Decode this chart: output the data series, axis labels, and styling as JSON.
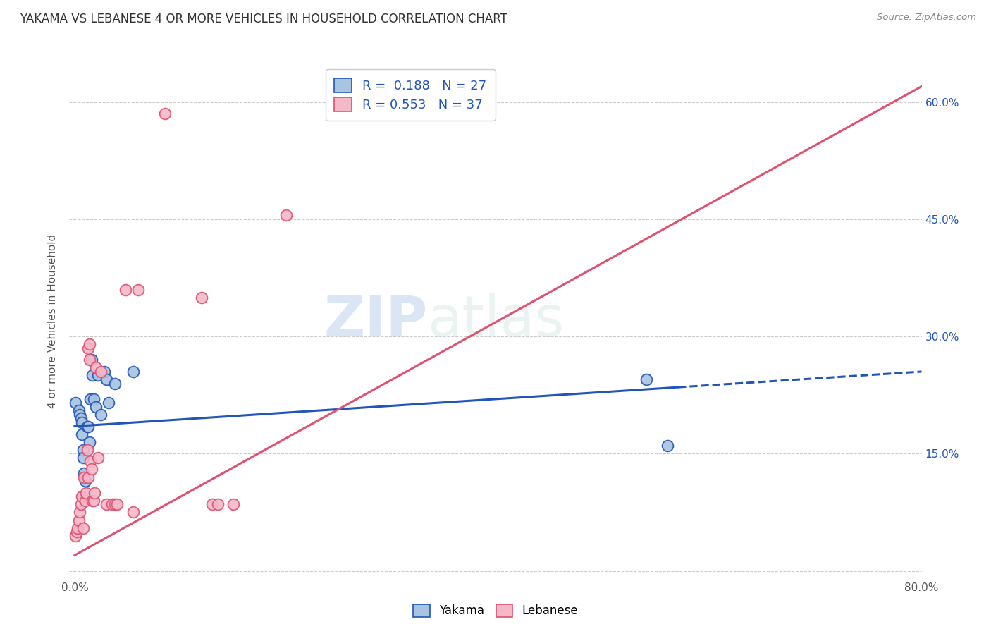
{
  "title": "YAKAMA VS LEBANESE 4 OR MORE VEHICLES IN HOUSEHOLD CORRELATION CHART",
  "source": "Source: ZipAtlas.com",
  "ylabel": "4 or more Vehicles in Household",
  "xlim": [
    -0.005,
    0.8
  ],
  "ylim": [
    -0.01,
    0.65
  ],
  "xtick_positions": [
    0.0,
    0.1,
    0.2,
    0.3,
    0.4,
    0.5,
    0.6,
    0.7,
    0.8
  ],
  "xticklabels": [
    "0.0%",
    "",
    "",
    "",
    "",
    "",
    "",
    "",
    "80.0%"
  ],
  "ytick_positions": [
    0.0,
    0.15,
    0.3,
    0.45,
    0.6
  ],
  "ytick_right": [
    0.15,
    0.3,
    0.45,
    0.6
  ],
  "yticklabels_right": [
    "15.0%",
    "30.0%",
    "45.0%",
    "60.0%"
  ],
  "watermark": "ZIPatlas",
  "legend_r_yakama": "0.188",
  "legend_n_yakama": "27",
  "legend_r_lebanese": "0.553",
  "legend_n_lebanese": "37",
  "yakama_color": "#a8c4e0",
  "lebanese_color": "#f4b8c8",
  "yakama_line_color": "#2255bb",
  "lebanese_line_color": "#e05070",
  "yakama_line": {
    "x0": 0.0,
    "y0": 0.185,
    "x1": 0.57,
    "y1": 0.235,
    "x_dash_end": 0.8,
    "y_dash_end": 0.255
  },
  "lebanese_line": {
    "x0": 0.0,
    "y0": 0.02,
    "x1": 0.8,
    "y1": 0.62
  },
  "yakama_scatter": [
    [
      0.001,
      0.215
    ],
    [
      0.004,
      0.205
    ],
    [
      0.005,
      0.2
    ],
    [
      0.006,
      0.195
    ],
    [
      0.007,
      0.19
    ],
    [
      0.007,
      0.175
    ],
    [
      0.008,
      0.155
    ],
    [
      0.008,
      0.145
    ],
    [
      0.009,
      0.125
    ],
    [
      0.01,
      0.115
    ],
    [
      0.012,
      0.185
    ],
    [
      0.013,
      0.185
    ],
    [
      0.014,
      0.165
    ],
    [
      0.015,
      0.22
    ],
    [
      0.016,
      0.27
    ],
    [
      0.017,
      0.25
    ],
    [
      0.018,
      0.22
    ],
    [
      0.02,
      0.21
    ],
    [
      0.022,
      0.25
    ],
    [
      0.025,
      0.2
    ],
    [
      0.028,
      0.255
    ],
    [
      0.03,
      0.245
    ],
    [
      0.032,
      0.215
    ],
    [
      0.038,
      0.24
    ],
    [
      0.055,
      0.255
    ],
    [
      0.54,
      0.245
    ],
    [
      0.56,
      0.16
    ]
  ],
  "lebanese_scatter": [
    [
      0.001,
      0.045
    ],
    [
      0.002,
      0.05
    ],
    [
      0.003,
      0.055
    ],
    [
      0.004,
      0.065
    ],
    [
      0.005,
      0.075
    ],
    [
      0.006,
      0.085
    ],
    [
      0.007,
      0.095
    ],
    [
      0.008,
      0.055
    ],
    [
      0.009,
      0.12
    ],
    [
      0.01,
      0.09
    ],
    [
      0.011,
      0.1
    ],
    [
      0.012,
      0.155
    ],
    [
      0.013,
      0.12
    ],
    [
      0.013,
      0.285
    ],
    [
      0.014,
      0.29
    ],
    [
      0.014,
      0.27
    ],
    [
      0.015,
      0.14
    ],
    [
      0.016,
      0.13
    ],
    [
      0.017,
      0.09
    ],
    [
      0.018,
      0.09
    ],
    [
      0.019,
      0.1
    ],
    [
      0.02,
      0.26
    ],
    [
      0.022,
      0.145
    ],
    [
      0.025,
      0.255
    ],
    [
      0.03,
      0.085
    ],
    [
      0.035,
      0.085
    ],
    [
      0.038,
      0.085
    ],
    [
      0.04,
      0.085
    ],
    [
      0.048,
      0.36
    ],
    [
      0.055,
      0.075
    ],
    [
      0.06,
      0.36
    ],
    [
      0.085,
      0.585
    ],
    [
      0.12,
      0.35
    ],
    [
      0.13,
      0.085
    ],
    [
      0.135,
      0.085
    ],
    [
      0.15,
      0.085
    ],
    [
      0.2,
      0.455
    ]
  ],
  "background_color": "#ffffff",
  "grid_color": "#cccccc"
}
